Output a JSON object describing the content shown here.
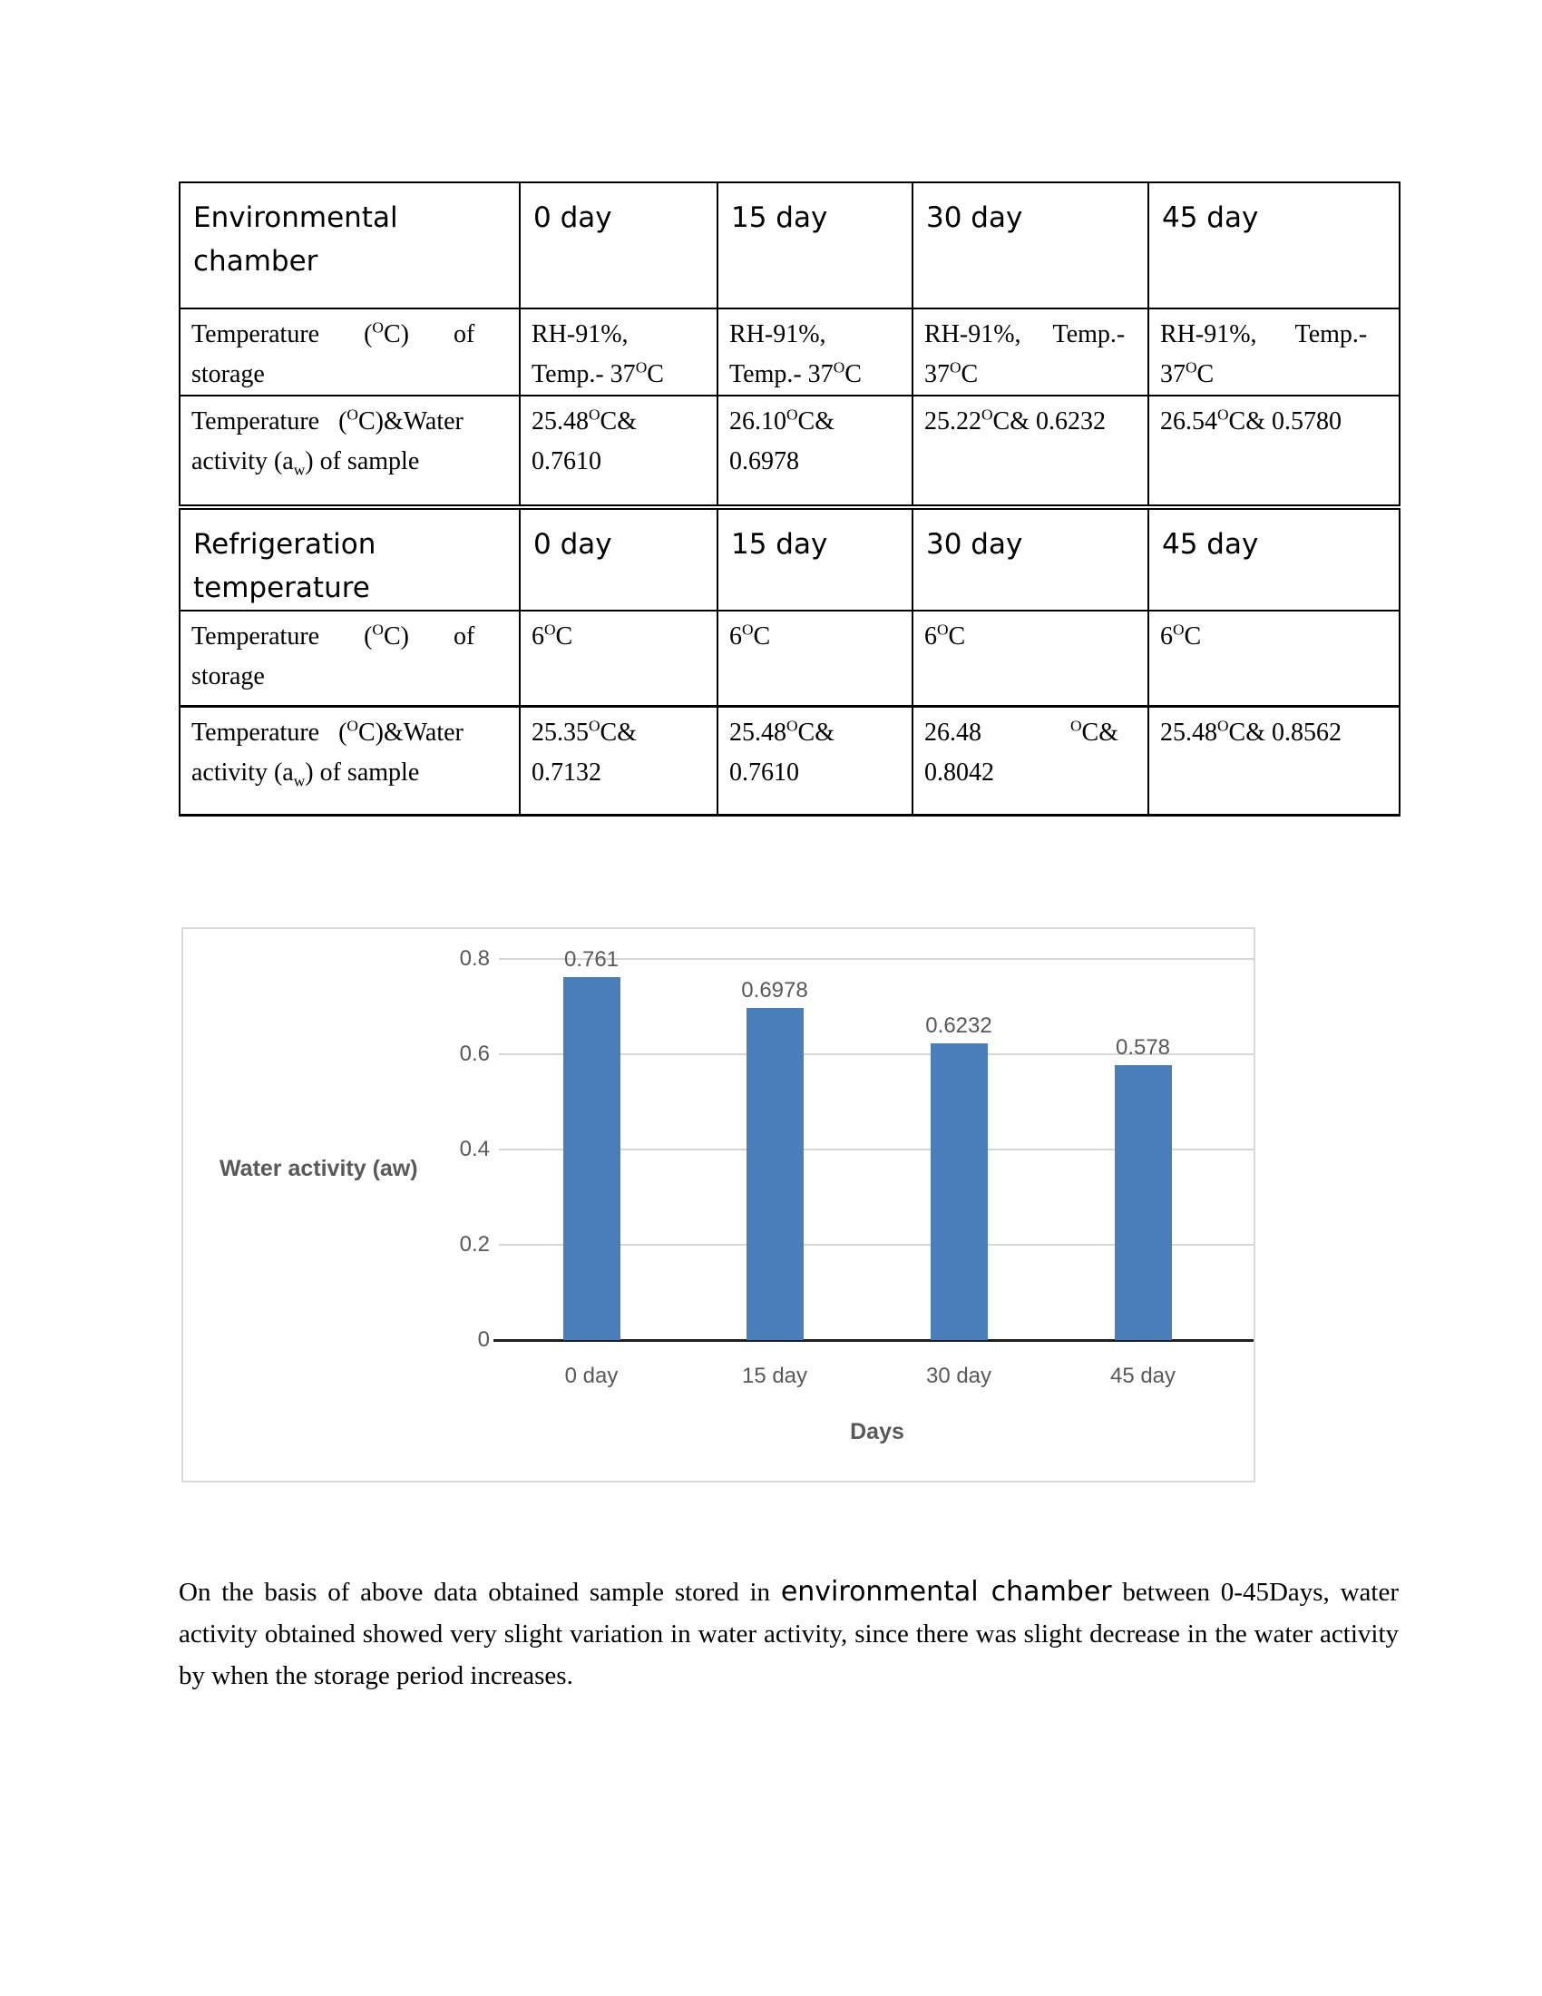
{
  "table": {
    "sections": [
      {
        "header": [
          "Environmental chamber",
          "0 day",
          "15 day",
          "30 day",
          "45 day"
        ],
        "rows": [
          {
            "cells": [
              "Temperature       ({sup}O{/sup}C)       of\nstorage",
              "RH-91%,\nTemp.- 37{sup}O{/sup}C",
              "RH-91%,\nTemp.- 37{sup}O{/sup}C",
              "RH-91%,     Temp.-\n37{sup}O{/sup}C",
              "RH-91%,      Temp.-\n37{sup}O{/sup}C"
            ]
          },
          {
            "cells": [
              "Temperature   ({sup}O{/sup}C)&Water\nactivity (a{sub}w{/sub}) of sample",
              "25.48{sup}O{/sup}C&\n0.7610",
              "26.10{sup}O{/sup}C&\n0.6978",
              "25.22{sup}O{/sup}C& 0.6232",
              "26.54{sup}O{/sup}C& 0.5780"
            ]
          }
        ]
      },
      {
        "header": [
          "Refrigeration temperature",
          "0 day",
          "15 day",
          "30 day",
          "45 day"
        ],
        "rows": [
          {
            "cells": [
              "Temperature       ({sup}O{/sup}C)       of\nstorage",
              "6{sup}O{/sup}C",
              "6{sup}O{/sup}C",
              "6{sup}O{/sup}C",
              "6{sup}O{/sup}C"
            ]
          },
          {
            "cells": [
              "Temperature   ({sup}O{/sup}C)&Water\nactivity (a{sub}w{/sub}) of sample",
              "25.35{sup}O{/sup}C&\n0.7132",
              "25.48{sup}O{/sup}C&\n0.7610",
              "26.48              {sup}O{/sup}C&\n0.8042",
              "25.48{sup}O{/sup}C& 0.8562"
            ]
          }
        ]
      }
    ]
  },
  "chart_data": {
    "type": "bar",
    "categories": [
      "0 day",
      "15 day",
      "30 day",
      "45 day"
    ],
    "values": [
      0.761,
      0.6978,
      0.6232,
      0.578
    ],
    "data_labels": [
      "0.761",
      "0.6978",
      "0.6232",
      "0.578"
    ],
    "title": "",
    "xlabel": "Days",
    "ylabel": "Water activity (aw)",
    "ylim": [
      0,
      0.8
    ],
    "yticks": [
      0,
      0.2,
      0.4,
      0.6,
      0.8
    ],
    "grid": true,
    "legend": "none",
    "bar_color": "#4a7ebb",
    "text_color": "#595959",
    "gridline_color": "#d6d6d6",
    "axis_color": "#1f1f1f"
  },
  "paragraph": {
    "part1": "On the basis of above data obtained sample stored in ",
    "highlight": "environmental chamber",
    "part2": " between 0-45Days, water activity obtained showed very slight variation in water activity, since there was slight decrease in the water activity by when the storage period increases."
  }
}
